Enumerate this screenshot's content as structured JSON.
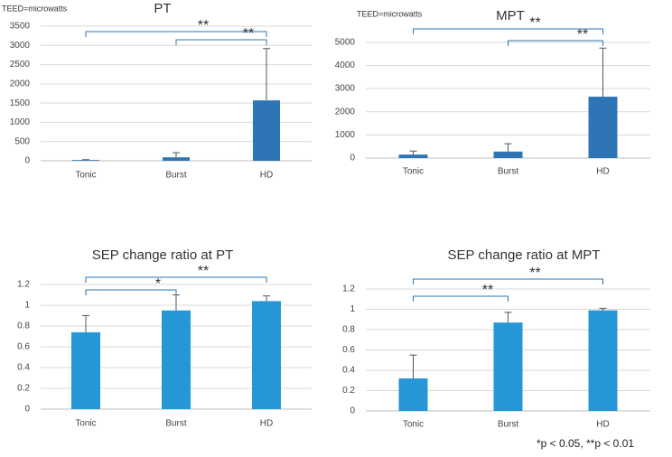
{
  "chart_data": [
    {
      "type": "bar",
      "title": "PT",
      "annotation": "TEED=microwatts",
      "categories": [
        "Tonic",
        "Burst",
        "HD"
      ],
      "series": [
        {
          "color": "#2e75b6",
          "values": [
            20,
            90,
            1570
          ],
          "errors": [
            10,
            120,
            1350
          ]
        }
      ],
      "ylim": [
        0,
        3500
      ],
      "yticks": [
        0,
        500,
        1000,
        1500,
        2000,
        2500,
        3000,
        3500
      ],
      "grid": true,
      "brackets": [
        {
          "from": 0,
          "to": 2,
          "label": "**"
        },
        {
          "from": 1,
          "to": 2,
          "label": "**"
        }
      ]
    },
    {
      "type": "bar",
      "title": "MPT",
      "annotation": "TEED=microwatts",
      "categories": [
        "Tonic",
        "Burst",
        "HD"
      ],
      "series": [
        {
          "color": "#2e75b6",
          "values": [
            150,
            280,
            2650
          ],
          "errors": [
            150,
            340,
            2100
          ]
        }
      ],
      "ylim": [
        0,
        5500
      ],
      "yticks": [
        0,
        1000,
        2000,
        3000,
        4000,
        5000
      ],
      "grid": true,
      "brackets": [
        {
          "from": 0,
          "to": 2,
          "label": "**"
        },
        {
          "from": 1,
          "to": 2,
          "label": "**"
        }
      ]
    },
    {
      "type": "bar",
      "title": "SEP change ratio at PT",
      "categories": [
        "Tonic",
        "Burst",
        "HD"
      ],
      "series": [
        {
          "color": "#2596d6",
          "values": [
            0.74,
            0.95,
            1.04
          ],
          "errors": [
            0.16,
            0.15,
            0.05
          ]
        }
      ],
      "ylim": [
        0,
        1.2
      ],
      "yticks": [
        0,
        0.2,
        0.4,
        0.6,
        0.8,
        1,
        1.2
      ],
      "grid": true,
      "brackets": [
        {
          "from": 0,
          "to": 2,
          "label": "**"
        },
        {
          "from": 0,
          "to": 1,
          "label": "*"
        }
      ]
    },
    {
      "type": "bar",
      "title": "SEP change ratio at MPT",
      "categories": [
        "Tonic",
        "Burst",
        "HD"
      ],
      "series": [
        {
          "color": "#2596d6",
          "values": [
            0.32,
            0.87,
            0.99
          ],
          "errors": [
            0.23,
            0.1,
            0.02
          ]
        }
      ],
      "ylim": [
        0,
        1.2
      ],
      "yticks": [
        0,
        0.2,
        0.4,
        0.6,
        0.8,
        1,
        1.2
      ],
      "grid": true,
      "brackets": [
        {
          "from": 0,
          "to": 2,
          "label": "**"
        },
        {
          "from": 0,
          "to": 1,
          "label": "**"
        }
      ]
    }
  ],
  "footnote": "*p < 0.05, **p < 0.01"
}
